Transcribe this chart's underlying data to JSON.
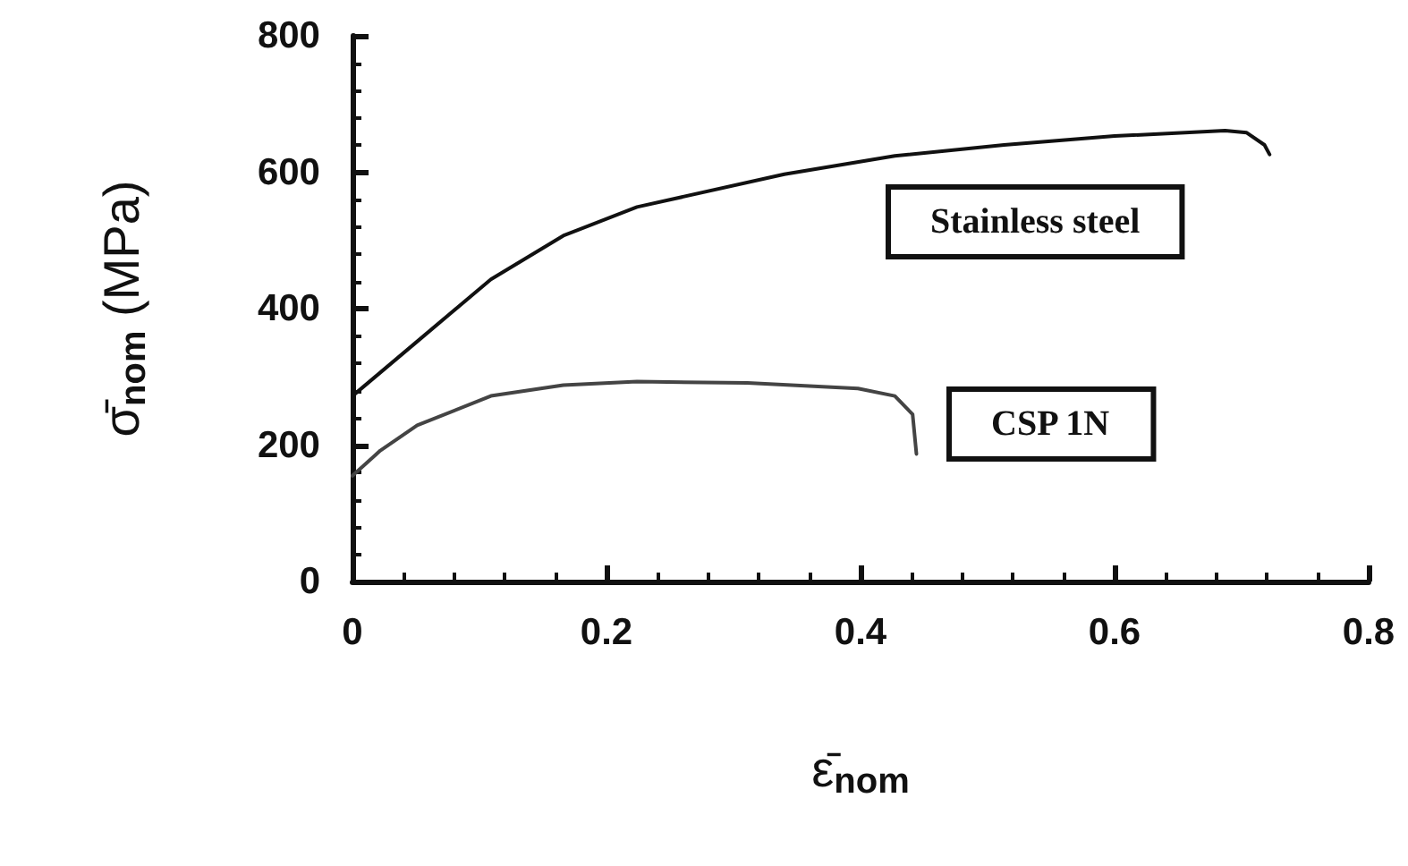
{
  "chart_data": {
    "type": "line",
    "xlabel": "ε̄$_{nom}$",
    "ylabel": "σ̄$_{nom}$ (MPa)",
    "xlim": [
      0,
      0.8
    ],
    "xticks": [
      0,
      0.2,
      0.4,
      0.6,
      0.8
    ],
    "ylim": [
      0,
      800
    ],
    "yticks": [
      0,
      200,
      400,
      600,
      800
    ],
    "grid": false,
    "legend": false,
    "marker": "none",
    "line_style": "solid",
    "series": [
      {
        "name": "Stainless steel",
        "color": "#111111",
        "x": [
          0,
          0.051,
          0.109,
          0.166,
          0.224,
          0.34,
          0.427,
          0.513,
          0.6,
          0.687,
          0.704,
          0.718,
          0.722
        ],
        "values": [
          272,
          352,
          443,
          507,
          549,
          597,
          624,
          640,
          653,
          661,
          658,
          640,
          626
        ]
      },
      {
        "name": "CSP 1N",
        "color": "#444444",
        "x": [
          0,
          0.022,
          0.051,
          0.109,
          0.166,
          0.224,
          0.311,
          0.398,
          0.427,
          0.441,
          0.444
        ],
        "values": [
          155,
          192,
          229,
          272,
          288,
          293,
          291,
          283,
          272,
          245,
          187
        ]
      }
    ]
  }
}
